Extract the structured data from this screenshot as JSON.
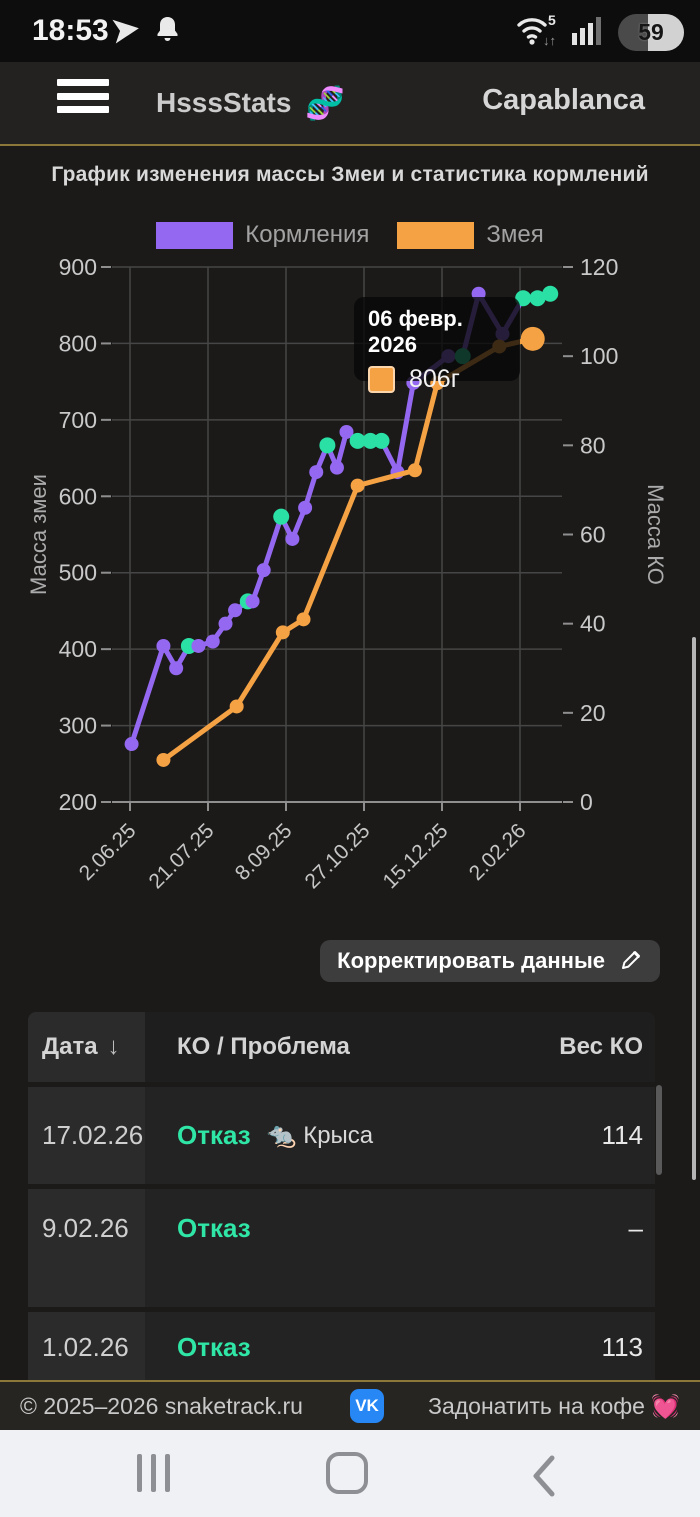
{
  "status_bar": {
    "time": "18:53",
    "wifi_label": "5",
    "battery_percent": "59"
  },
  "header": {
    "app_name": "HsssStats",
    "app_emoji": "🧬",
    "profile": "Capablanca"
  },
  "chart_data": {
    "type": "line",
    "title": "График изменения массы Змеи и статистика кормлений",
    "x_tick_labels": [
      "2.06.25",
      "21.07.25",
      "8.09.25",
      "27.10.25",
      "15.12.25",
      "2.02.26"
    ],
    "x_tick_days": [
      0,
      49,
      98,
      147,
      196,
      245
    ],
    "left_axis": {
      "label": "Масса змеи",
      "min": 200,
      "max": 900,
      "ticks": [
        900,
        800,
        700,
        600,
        500,
        400,
        300,
        200
      ]
    },
    "right_axis": {
      "label": "Масса КО",
      "min": 0,
      "max": 120,
      "ticks": [
        120,
        100,
        80,
        60,
        40,
        20,
        0
      ]
    },
    "grid": true,
    "legend": [
      {
        "name": "Кормления",
        "color": "#9468f0"
      },
      {
        "name": "Змея",
        "color": "#f5a245"
      }
    ],
    "refusal_marker_color": "#2ae0a5",
    "series": [
      {
        "name": "Кормления",
        "axis": "right",
        "color": "#9468f0",
        "points": [
          {
            "d": 1,
            "v": 13
          },
          {
            "d": 21,
            "v": 35
          },
          {
            "d": 29,
            "v": 30
          },
          {
            "d": 37,
            "v": 35,
            "refusal": true
          },
          {
            "d": 43,
            "v": 35
          },
          {
            "d": 52,
            "v": 36
          },
          {
            "d": 60,
            "v": 40
          },
          {
            "d": 66,
            "v": 43
          },
          {
            "d": 74,
            "v": 45,
            "refusal": true
          },
          {
            "d": 77,
            "v": 45
          },
          {
            "d": 84,
            "v": 52
          },
          {
            "d": 95,
            "v": 64,
            "refusal": true
          },
          {
            "d": 102,
            "v": 59
          },
          {
            "d": 110,
            "v": 66
          },
          {
            "d": 117,
            "v": 74
          },
          {
            "d": 124,
            "v": 80,
            "refusal": true
          },
          {
            "d": 130,
            "v": 75
          },
          {
            "d": 136,
            "v": 83
          },
          {
            "d": 143,
            "v": 81,
            "refusal": true
          },
          {
            "d": 151,
            "v": 81,
            "refusal": true
          },
          {
            "d": 158,
            "v": 81,
            "refusal": true
          },
          {
            "d": 168,
            "v": 74
          },
          {
            "d": 178,
            "v": 94
          },
          {
            "d": 200,
            "v": 100
          },
          {
            "d": 209,
            "v": 100,
            "refusal": true
          },
          {
            "d": 219,
            "v": 114
          },
          {
            "d": 234,
            "v": 105
          },
          {
            "d": 247,
            "v": 113,
            "refusal": true
          },
          {
            "d": 256,
            "v": 113,
            "refusal": true
          },
          {
            "d": 264,
            "v": 114,
            "refusal": true
          }
        ]
      },
      {
        "name": "Змея",
        "axis": "left",
        "color": "#f5a245",
        "highlight_index": 8,
        "points": [
          {
            "d": 21,
            "v": 255
          },
          {
            "d": 67,
            "v": 325
          },
          {
            "d": 96,
            "v": 422
          },
          {
            "d": 109,
            "v": 439
          },
          {
            "d": 143,
            "v": 614
          },
          {
            "d": 179,
            "v": 634
          },
          {
            "d": 193,
            "v": 748
          },
          {
            "d": 232,
            "v": 796
          },
          {
            "d": 253,
            "v": 806
          }
        ]
      }
    ],
    "tooltip": {
      "date": "06 февр. 2026",
      "value": "806г",
      "swatch_color": "#f5a245"
    }
  },
  "actions": {
    "edit_button": "Корректировать данные"
  },
  "table": {
    "headers": {
      "date": "Дата",
      "sort_arrow": "↓",
      "ko": "КО / Проблема",
      "weight": "Вес КО"
    },
    "rows": [
      {
        "date": "17.02.26",
        "status": "Отказ",
        "ko": "🐀 Крыса",
        "weight": "114"
      },
      {
        "date": "9.02.26",
        "status": "Отказ",
        "ko": "",
        "weight": "–"
      },
      {
        "date": "1.02.26",
        "status": "Отказ",
        "ko": "",
        "weight": "113"
      }
    ]
  },
  "footer": {
    "copyright": "© 2025–2026 snaketrack.ru",
    "vk": "VK",
    "donate": "Задонатить на кофе 💓"
  }
}
